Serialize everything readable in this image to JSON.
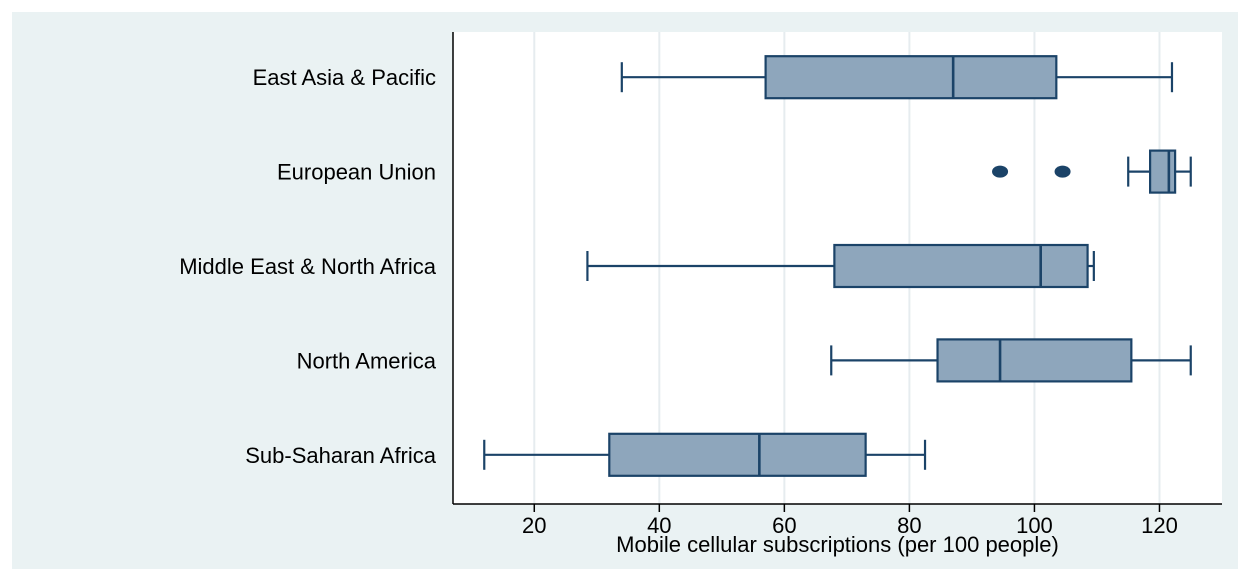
{
  "chart_data": {
    "type": "boxplot",
    "orientation": "horizontal",
    "title": "",
    "xlabel": "Mobile cellular subscriptions (per 100 people)",
    "ylabel": "",
    "xlim": [
      7,
      130
    ],
    "x_ticks": [
      20,
      40,
      60,
      80,
      100,
      120
    ],
    "x_tick_labels": [
      "20",
      "40",
      "60",
      "80",
      "100",
      "120"
    ],
    "grid": "vertical",
    "legend": "none",
    "colors": {
      "box_fill": "#8ea6bc",
      "box_stroke": "#1b4368",
      "outlier": "#1b4368",
      "plot_background": "#ffffff",
      "outer_background": "#eaf2f3",
      "grid": "#e6ecef"
    },
    "categories": [
      "East Asia & Pacific",
      "European Union",
      "Middle East & North Africa",
      "North America",
      "Sub-Saharan Africa"
    ],
    "boxes": [
      {
        "category": "East Asia & Pacific",
        "whisker_low": 34,
        "q1": 57,
        "median": 87,
        "q3": 103.5,
        "whisker_high": 122,
        "outliers": []
      },
      {
        "category": "European Union",
        "whisker_low": 115,
        "q1": 118.5,
        "median": 121.5,
        "q3": 122.5,
        "whisker_high": 125,
        "outliers": [
          94.5,
          104.5
        ]
      },
      {
        "category": "Middle East & North Africa",
        "whisker_low": 28.5,
        "q1": 68,
        "median": 101,
        "q3": 108.5,
        "whisker_high": 109.5,
        "outliers": []
      },
      {
        "category": "North America",
        "whisker_low": 67.5,
        "q1": 84.5,
        "median": 94.5,
        "q3": 115.5,
        "whisker_high": 125,
        "outliers": []
      },
      {
        "category": "Sub-Saharan Africa",
        "whisker_low": 12,
        "q1": 32,
        "median": 56,
        "q3": 73,
        "whisker_high": 82.5,
        "outliers": []
      }
    ]
  }
}
